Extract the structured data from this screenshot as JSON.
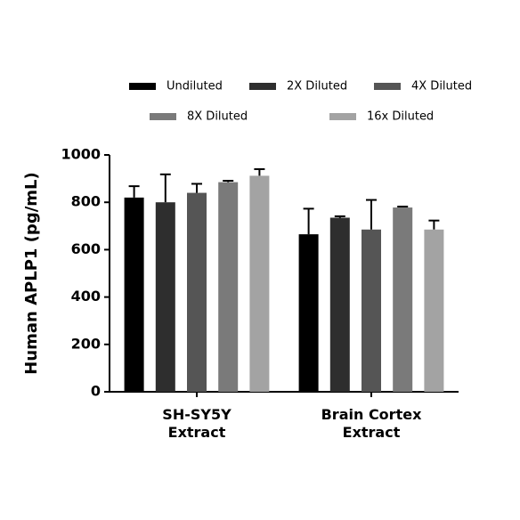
{
  "chart_data": {
    "type": "bar",
    "y_label": "Human APLP1 (pg/mL)",
    "categories": [
      "SH-SY5Y\nExtract",
      "Brain Cortex\nExtract"
    ],
    "series": [
      {
        "name": "Undiluted",
        "color": "#000000",
        "values": [
          820,
          665
        ],
        "errors": [
          48,
          108
        ]
      },
      {
        "name": "2X Diluted",
        "color": "#2e2e2e",
        "values": [
          800,
          735
        ],
        "errors": [
          118,
          6
        ]
      },
      {
        "name": "4X Diluted",
        "color": "#555555",
        "values": [
          840,
          685
        ],
        "errors": [
          38,
          125
        ]
      },
      {
        "name": "8X Diluted",
        "color": "#7a7a7a",
        "values": [
          885,
          778
        ],
        "errors": [
          6,
          4
        ]
      },
      {
        "name": "16x Diluted",
        "color": "#a3a3a3",
        "values": [
          912,
          685
        ],
        "errors": [
          28,
          38
        ]
      }
    ],
    "ylim": [
      0,
      1000
    ],
    "yticks": [
      0,
      200,
      400,
      600,
      800,
      1000
    ]
  }
}
